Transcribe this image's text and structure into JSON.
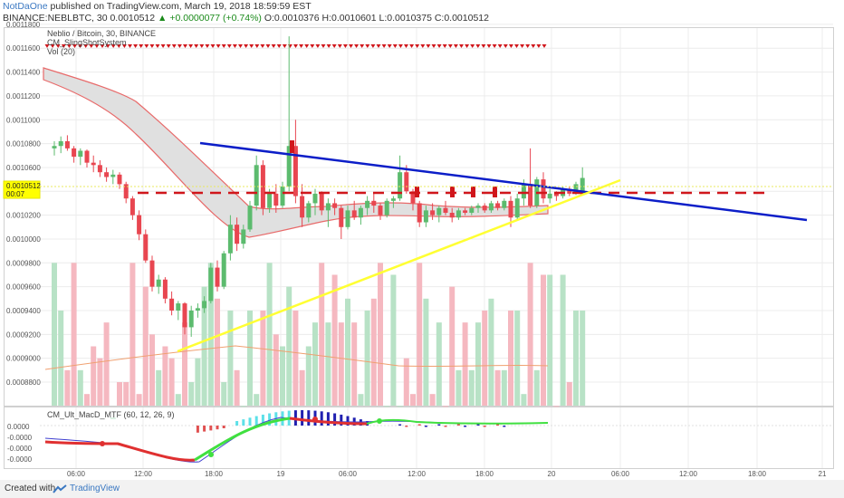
{
  "header": {
    "author": "NotDaOne",
    "published_text": "published on TradingView.com, March 19, 2018 18:59:59 EST",
    "symbol": "BINANCE:NEBLBTC, 30",
    "last": "0.0010512",
    "change": "▲ +0.0000077 (+0.74%)",
    "ohlc": "O:0.0010376 H:0.0010601 L:0.0010375 C:0.0010512"
  },
  "legend": {
    "title": "Neblio / Bitcoin, 30, BINANCE",
    "indicator1": "CM_SlingShotSystem",
    "indicator2": "Vol (20)",
    "macd_title": "CM_Ult_MacD_MTF (60, 12, 26, 9)"
  },
  "price_label": {
    "value": "0.0010512",
    "countdown": "00:07"
  },
  "footer": {
    "created_with": "Created with",
    "brand": "TradingView"
  },
  "colors": {
    "resistance_line": "#0c1ec8",
    "support_line": "#ffff33",
    "level_line": "#d0161b",
    "bull_candle": "#5cbb6e",
    "bear_candle": "#e84650",
    "band_fill": "#e0e0e0",
    "band_edge": "#e86a6a",
    "volume_up": "#b8e2c6",
    "volume_down": "#f5b8c0",
    "macd_line": "#4040d0",
    "signal_up": "#40e040",
    "signal_down": "#e03030"
  },
  "chart_data": {
    "type": "candlestick",
    "y_ticks": [
      "0.0011800",
      "0.0011600",
      "0.0011400",
      "0.0011200",
      "0.0011000",
      "0.0010800",
      "0.0010600",
      "0.0010400",
      "0.0010200",
      "0.0010000",
      "0.0009800",
      "0.0009600",
      "0.0009400",
      "0.0009200",
      "0.0009000",
      "0.0008800"
    ],
    "macd_ticks": [
      "0.0000",
      "-0.0000",
      "-0.0000",
      "-0.0000"
    ],
    "x_ticks": [
      "06:00",
      "12:00",
      "18:00",
      "19",
      "06:00",
      "12:00",
      "18:00",
      "20",
      "06:00",
      "12:00",
      "18:00",
      "21"
    ],
    "ylim": [
      0.00087,
      0.00119
    ],
    "candles": [
      [
        0.001076,
        0.001082,
        0.00107,
        0.001078
      ],
      [
        0.001078,
        0.001086,
        0.001072,
        0.001082
      ],
      [
        0.001082,
        0.001087,
        0.001074,
        0.001076
      ],
      [
        0.001076,
        0.001078,
        0.001064,
        0.001069
      ],
      [
        0.001069,
        0.001076,
        0.001062,
        0.001074
      ],
      [
        0.001074,
        0.001075,
        0.00106,
        0.001064
      ],
      [
        0.001064,
        0.00107,
        0.001056,
        0.001062
      ],
      [
        0.001062,
        0.001066,
        0.001052,
        0.001056
      ],
      [
        0.001056,
        0.00106,
        0.001048,
        0.001052
      ],
      [
        0.001052,
        0.001058,
        0.001046,
        0.001054
      ],
      [
        0.001054,
        0.001056,
        0.001042,
        0.001046
      ],
      [
        0.001046,
        0.001048,
        0.00103,
        0.001034
      ],
      [
        0.001034,
        0.001036,
        0.001016,
        0.00102
      ],
      [
        0.00102,
        0.001024,
        0.000999,
        0.001004
      ],
      [
        0.001004,
        0.001008,
        0.00098,
        0.000982
      ],
      [
        0.000982,
        0.000986,
        0.000956,
        0.00096
      ],
      [
        0.00096,
        0.00097,
        0.000954,
        0.000966
      ],
      [
        0.000966,
        0.000968,
        0.000946,
        0.00095
      ],
      [
        0.00095,
        0.000956,
        0.000936,
        0.00094
      ],
      [
        0.00094,
        0.000948,
        0.000932,
        0.000946
      ],
      [
        0.000946,
        0.000947,
        0.00092,
        0.000926
      ],
      [
        0.000926,
        0.000944,
        0.000918,
        0.00094
      ],
      [
        0.00094,
        0.000946,
        0.000934,
        0.000942
      ],
      [
        0.000942,
        0.000952,
        0.000938,
        0.000948
      ],
      [
        0.000948,
        0.00098,
        0.000946,
        0.000976
      ],
      [
        0.000976,
        0.000982,
        0.000956,
        0.00096
      ],
      [
        0.00096,
        0.00099,
        0.000958,
        0.000988
      ],
      [
        0.000988,
        0.00102,
        0.000982,
        0.001012
      ],
      [
        0.001012,
        0.001018,
        0.00099,
        0.000996
      ],
      [
        0.000996,
        0.001012,
        0.000992,
        0.001008
      ],
      [
        0.001008,
        0.001032,
        0.001006,
        0.001028
      ],
      [
        0.001028,
        0.00107,
        0.001024,
        0.001062
      ],
      [
        0.001062,
        0.001066,
        0.00102,
        0.001026
      ],
      [
        0.001026,
        0.001042,
        0.001022,
        0.001038
      ],
      [
        0.001038,
        0.001046,
        0.001022,
        0.001028
      ],
      [
        0.001028,
        0.001048,
        0.001026,
        0.001044
      ],
      [
        0.001044,
        0.00117,
        0.00104,
        0.001078
      ],
      [
        0.001078,
        0.0011,
        0.00103,
        0.001036
      ],
      [
        0.001036,
        0.001046,
        0.00101,
        0.001018
      ],
      [
        0.001018,
        0.001032,
        0.001014,
        0.00103
      ],
      [
        0.00103,
        0.001042,
        0.00102,
        0.001038
      ],
      [
        0.001038,
        0.00104,
        0.00102,
        0.001024
      ],
      [
        0.001024,
        0.001034,
        0.00101,
        0.00103
      ],
      [
        0.00103,
        0.001034,
        0.00102,
        0.001026
      ],
      [
        0.001026,
        0.001028,
        0.001,
        0.00101
      ],
      [
        0.00101,
        0.001028,
        0.001008,
        0.001024
      ],
      [
        0.001024,
        0.001032,
        0.001016,
        0.001018
      ],
      [
        0.001018,
        0.001028,
        0.001012,
        0.001026
      ],
      [
        0.001026,
        0.001036,
        0.00102,
        0.001032
      ],
      [
        0.001032,
        0.001038,
        0.001022,
        0.001028
      ],
      [
        0.001028,
        0.00103,
        0.001016,
        0.00102
      ],
      [
        0.00102,
        0.001034,
        0.001018,
        0.001032
      ],
      [
        0.001032,
        0.001036,
        0.001026,
        0.001034
      ],
      [
        0.001034,
        0.00107,
        0.001032,
        0.001056
      ],
      [
        0.001056,
        0.001062,
        0.001038,
        0.00104
      ],
      [
        0.00104,
        0.001042,
        0.001024,
        0.00103
      ],
      [
        0.00103,
        0.001032,
        0.00101,
        0.001014
      ],
      [
        0.001014,
        0.001028,
        0.00101,
        0.001024
      ],
      [
        0.001024,
        0.00103,
        0.001016,
        0.00102
      ],
      [
        0.00102,
        0.001028,
        0.001014,
        0.001026
      ],
      [
        0.001026,
        0.001032,
        0.00102,
        0.001022
      ],
      [
        0.001022,
        0.001026,
        0.001014,
        0.001018
      ],
      [
        0.001018,
        0.001026,
        0.001016,
        0.001024
      ],
      [
        0.001024,
        0.001026,
        0.00102,
        0.001022
      ],
      [
        0.001022,
        0.001028,
        0.00102,
        0.001026
      ],
      [
        0.001026,
        0.00103,
        0.001022,
        0.001028
      ],
      [
        0.001028,
        0.00103,
        0.001022,
        0.001024
      ],
      [
        0.001024,
        0.001032,
        0.001022,
        0.00103
      ],
      [
        0.00103,
        0.001032,
        0.001024,
        0.001026
      ],
      [
        0.001026,
        0.001034,
        0.001024,
        0.001032
      ],
      [
        0.001032,
        0.001036,
        0.00101,
        0.001018
      ],
      [
        0.001018,
        0.001038,
        0.001016,
        0.001034
      ],
      [
        0.001034,
        0.00105,
        0.001028,
        0.001046
      ],
      [
        0.001046,
        0.001076,
        0.001026,
        0.001028
      ],
      [
        0.001028,
        0.001052,
        0.001026,
        0.00105
      ],
      [
        0.00105,
        0.001056,
        0.00103,
        0.001034
      ],
      [
        0.001034,
        0.001042,
        0.00103,
        0.001038
      ],
      [
        0.001038,
        0.00104,
        0.001032,
        0.001036
      ],
      [
        0.001036,
        0.001044,
        0.001034,
        0.001042
      ],
      [
        0.001042,
        0.001044,
        0.001036,
        0.001038
      ],
      [
        0.001038,
        0.001048,
        0.001037,
        0.001046
      ],
      [
        0.0010376,
        0.0010601,
        0.0010375,
        0.0010512
      ]
    ],
    "volume": [
      0.00098,
      0.00094,
      0.00089,
      0.00098,
      0.00089,
      0.00087,
      0.00091,
      0.0009,
      0.00093,
      0.00085,
      0.00088,
      0.00088,
      0.00098,
      0.00087,
      0.00096,
      0.00092,
      0.00089,
      0.00091,
      0.0009,
      0.00087,
      0.00093,
      0.00088,
      0.0009,
      0.00096,
      0.00098,
      0.00095,
      0.00088,
      0.00094,
      0.00089,
      0.00086,
      0.00094,
      0.00087,
      0.00094,
      0.00098,
      0.00092,
      0.00091,
      0.00096,
      0.00094,
      0.00089,
      0.00091,
      0.00093,
      0.00098,
      0.00093,
      0.00097,
      0.00093,
      0.00095,
      0.00093,
      0.00087,
      0.00094,
      0.00095,
      0.00098,
      0.00086,
      0.00097,
      0.00086,
      0.0009,
      0.00087,
      0.00098,
      0.00095,
      0.00087,
      0.00093,
      0.00086,
      0.00096,
      0.00089,
      0.00093,
      0.00089,
      0.00093,
      0.00094,
      0.00095,
      0.00089,
      0.00089,
      0.00094,
      0.00094,
      0.00087,
      0.00098,
      0.00089,
      0.00097,
      0.00097,
      0.00086,
      0.00097,
      0.00088,
      0.00094,
      0.00094
    ]
  }
}
